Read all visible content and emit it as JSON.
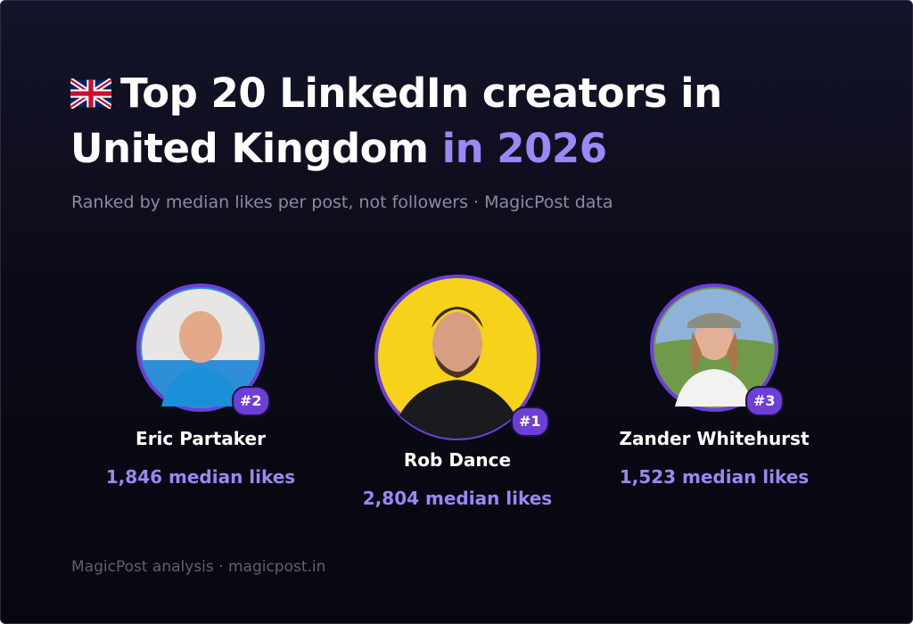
{
  "header": {
    "title_lines": [
      "Top 20 LinkedIn creators in",
      "United Kingdom"
    ],
    "title_highlight": "in 2026",
    "subtitle": "Ranked by median likes per post, not followers · MagicPost data"
  },
  "creators": [
    {
      "rank": "#2",
      "name": "Eric Partaker",
      "likes": "1,846 median likes"
    },
    {
      "rank": "#1",
      "name": "Rob Dance",
      "likes": "2,804 median likes"
    },
    {
      "rank": "#3",
      "name": "Zander Whitehurst",
      "likes": "1,523 median likes"
    }
  ],
  "footer": "MagicPost analysis · magicpost.in"
}
